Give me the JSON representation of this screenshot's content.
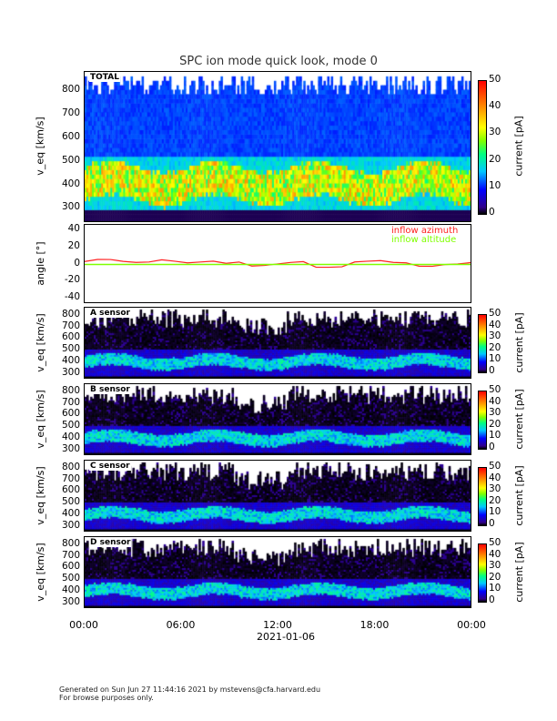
{
  "chart_data": {
    "type": "heatmap",
    "title": "SPC ion mode quick look, mode 0",
    "date_label": "2021-01-06",
    "x_ticks": [
      "00:00",
      "06:00",
      "12:00",
      "18:00",
      "00:00"
    ],
    "panels": [
      {
        "label": "TOTAL",
        "ylabel": "v_eq [km/s]",
        "yticks": [
          300,
          400,
          500,
          600,
          700,
          800
        ],
        "ylim": [
          240,
          880
        ],
        "colorbar_label": "current [pA]",
        "colorbar_ticks": [
          0,
          10,
          20,
          30,
          40,
          50
        ],
        "clim": [
          0,
          50
        ]
      },
      {
        "label": "",
        "ylabel": "angle [°]",
        "yticks": [
          40,
          20,
          0,
          -20,
          -40
        ],
        "ylim": [
          -47,
          47
        ],
        "series": [
          {
            "name": "inflow azimuth",
            "color": "#ff2020",
            "values": [
              4,
              7,
              5,
              3,
              2,
              3,
              6,
              4,
              2,
              2,
              3,
              1,
              2,
              -1,
              -2,
              0,
              2,
              3,
              -3,
              -4,
              -2,
              3,
              4,
              5,
              3,
              1,
              -2,
              -3,
              -1,
              1,
              2
            ]
          },
          {
            "name": "inflow altitude",
            "color": "#80ff00",
            "values": [
              0,
              0,
              0,
              0,
              0,
              0,
              0,
              0,
              0,
              0,
              0,
              0,
              0,
              0,
              0,
              0,
              0,
              0,
              0,
              0,
              0,
              0,
              0,
              0,
              0,
              0,
              0,
              0,
              0,
              0,
              0
            ]
          }
        ]
      },
      {
        "label": "A sensor",
        "ylabel": "v_eq [km/s]",
        "yticks": [
          300,
          400,
          500,
          600,
          700,
          800
        ],
        "ylim": [
          250,
          870
        ],
        "colorbar_label": "current [pA]",
        "colorbar_ticks": [
          0,
          10,
          20,
          30,
          40,
          50
        ],
        "clim": [
          0,
          50
        ]
      },
      {
        "label": "B sensor",
        "ylabel": "v_eq [km/s]",
        "yticks": [
          300,
          400,
          500,
          600,
          700,
          800
        ],
        "ylim": [
          250,
          870
        ],
        "colorbar_label": "current [pA]",
        "colorbar_ticks": [
          0,
          10,
          20,
          30,
          40,
          50
        ],
        "clim": [
          0,
          50
        ]
      },
      {
        "label": "C sensor",
        "ylabel": "v_eq [km/s]",
        "yticks": [
          300,
          400,
          500,
          600,
          700,
          800
        ],
        "ylim": [
          250,
          870
        ],
        "colorbar_label": "current [pA]",
        "colorbar_ticks": [
          0,
          10,
          20,
          30,
          40,
          50
        ],
        "clim": [
          0,
          50
        ]
      },
      {
        "label": "D sensor",
        "ylabel": "v_eq [km/s]",
        "yticks": [
          300,
          400,
          500,
          600,
          700,
          800
        ],
        "ylim": [
          250,
          870
        ],
        "colorbar_label": "current [pA]",
        "colorbar_ticks": [
          0,
          10,
          20,
          30,
          40,
          50
        ],
        "clim": [
          0,
          50
        ]
      }
    ]
  },
  "footer": {
    "line1": "Generated on Sun Jun 27 11:44:16 2021 by mstevens@cfa.harvard.edu",
    "line2": "For browse purposes only."
  }
}
